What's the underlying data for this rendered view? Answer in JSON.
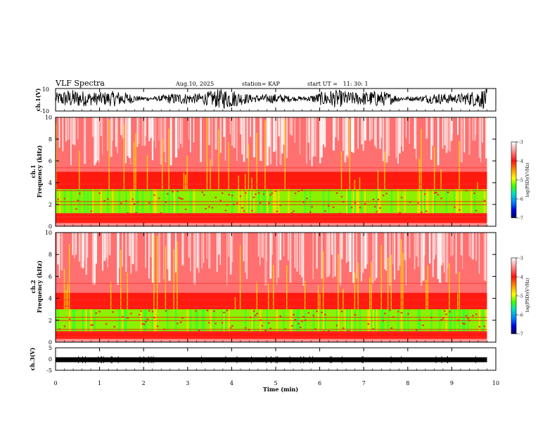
{
  "header": {
    "title": "VLF Spectra",
    "date": "Aug.10, 2025",
    "station": "station= KAP",
    "start": "start UT =   11: 30: 1"
  },
  "colors": {
    "spectrogram_low": "#00e040",
    "spectrogram_mid": "#ffd800",
    "spectrogram_high": "#ff2010",
    "background_white": "#ffffff",
    "trace": "#000000"
  },
  "chart_data": [
    {
      "type": "line",
      "panel": "ch1-waveform",
      "ylabel": "ch.1(V)",
      "ylim": [
        -10,
        10
      ],
      "y_ticks": [
        "10",
        "-10"
      ],
      "xlim": [
        0,
        10
      ],
      "description_values": {
        "typical_min": -6,
        "typical_max": 8,
        "end_time_min": 9.8
      }
    },
    {
      "type": "heatmap",
      "panel": "ch1-spectrogram",
      "ylabel": "ch.1\nFrequency (kHz)",
      "ylabel_line1": "ch.1",
      "ylabel_line2": "Frequency (kHz)",
      "ylim": [
        0,
        10
      ],
      "y_ticks": [
        "0",
        "2",
        "4",
        "6",
        "8",
        "10"
      ],
      "xlim": [
        0,
        10
      ],
      "data_end_min": 9.8,
      "colorbar": {
        "label": "log(PSD)(V²/Hz)",
        "range": [
          -7,
          -3
        ],
        "ticks": [
          "-3",
          "-4",
          "-5",
          "-6",
          "-7"
        ]
      },
      "bands_khz": {
        "green_band": [
          1.2,
          3.4
        ],
        "red_band_top": 5.0
      }
    },
    {
      "type": "heatmap",
      "panel": "ch2-spectrogram",
      "ylabel": "ch.2\nFrequency (kHz)",
      "ylabel_line1": "ch.2",
      "ylabel_line2": "Frequency (kHz)",
      "ylim": [
        0,
        10
      ],
      "y_ticks": [
        "0",
        "2",
        "4",
        "6",
        "8",
        "10"
      ],
      "xlim": [
        0,
        10
      ],
      "data_end_min": 9.8,
      "colorbar": {
        "label": "log(PSD)(V²/Hz)",
        "range": [
          -7,
          -3
        ],
        "ticks": [
          "-3",
          "-4",
          "-5",
          "-6",
          "-7"
        ]
      },
      "bands_khz": {
        "green_band": [
          1.0,
          3.0
        ],
        "red_band_top": 4.5
      }
    },
    {
      "type": "line",
      "panel": "ch3-waveform",
      "ylabel": "ch.3(V)",
      "ylim": [
        -5,
        5
      ],
      "y_ticks": [
        "5",
        "0",
        "-5"
      ],
      "xlim": [
        0,
        10
      ],
      "description_values": {
        "level": -0.3,
        "end_time_min": 9.8
      }
    }
  ],
  "x_axis": {
    "label": "Time (min)",
    "ticks": [
      "0",
      "1",
      "2",
      "3",
      "4",
      "5",
      "6",
      "7",
      "8",
      "9",
      "10"
    ]
  }
}
